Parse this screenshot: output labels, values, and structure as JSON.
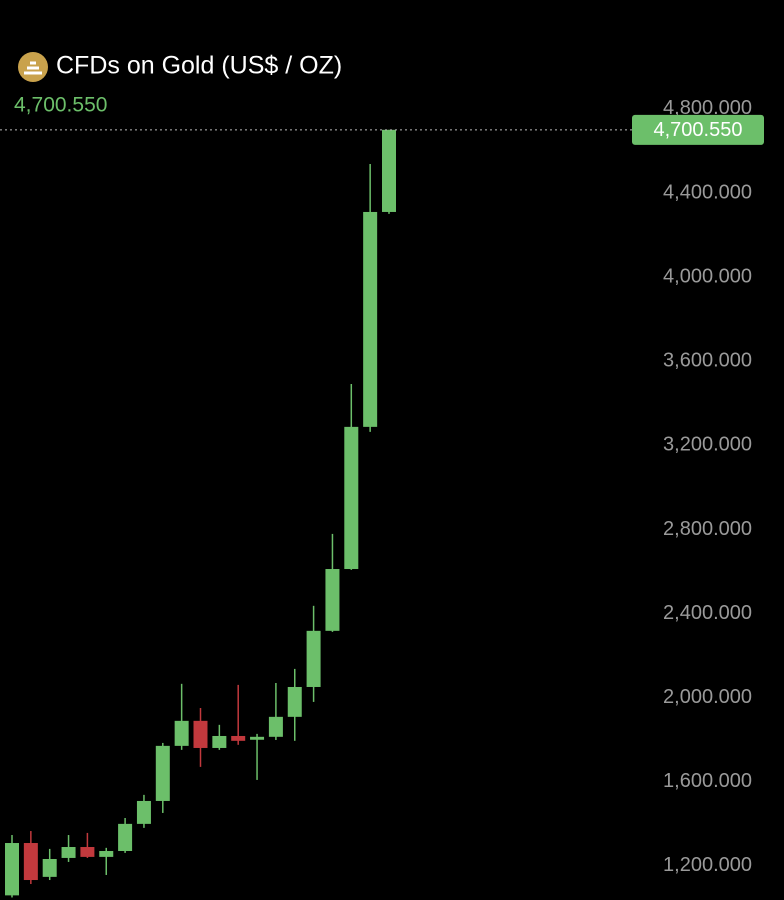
{
  "chart_data": {
    "type": "candlestick",
    "title": "CFDs on Gold (US$ / OZ)",
    "last_price": {
      "value": 4700.55,
      "label": "4,700.550"
    },
    "up_color": "#6cbf6a",
    "down_color": "#c2393d",
    "open": [
      1060,
      1309,
      1148,
      1238,
      1290,
      1243,
      1271,
      1400,
      1509,
      1771,
      1890,
      1761,
      1818,
      1800,
      1814,
      1909,
      2051,
      2318,
      2612,
      3288,
      4310
    ],
    "close": [
      1309,
      1133,
      1233,
      1290,
      1243,
      1271,
      1400,
      1509,
      1771,
      1890,
      1761,
      1818,
      1795,
      1814,
      1909,
      2051,
      2318,
      2612,
      3288,
      4310,
      4700.55
    ],
    "high": [
      1347,
      1366,
      1281,
      1347,
      1357,
      1286,
      1428,
      1538,
      1785,
      2066,
      1951,
      1871,
      2061,
      1828,
      2070,
      2137,
      2437,
      2779,
      3492,
      4538,
      4700.55
    ],
    "low": [
      1050,
      1114,
      1133,
      1219,
      1238,
      1157,
      1262,
      1381,
      1452,
      1752,
      1671,
      1752,
      1776,
      1609,
      1799,
      1795,
      1980,
      2313,
      2608,
      3264,
      4301
    ],
    "ylim": [
      1038,
      5318
    ],
    "yticks": [
      {
        "value": 4800,
        "label": "4,800.000"
      },
      {
        "value": 4400,
        "label": "4,400.000"
      },
      {
        "value": 4000,
        "label": "4,000.000"
      },
      {
        "value": 3600,
        "label": "3,600.000"
      },
      {
        "value": 3200,
        "label": "3,200.000"
      },
      {
        "value": 2800,
        "label": "2,800.000"
      },
      {
        "value": 2400,
        "label": "2,400.000"
      },
      {
        "value": 2000,
        "label": "2,000.000"
      },
      {
        "value": 1600,
        "label": "1,600.000"
      },
      {
        "value": 1200,
        "label": "1,200.000"
      }
    ]
  }
}
